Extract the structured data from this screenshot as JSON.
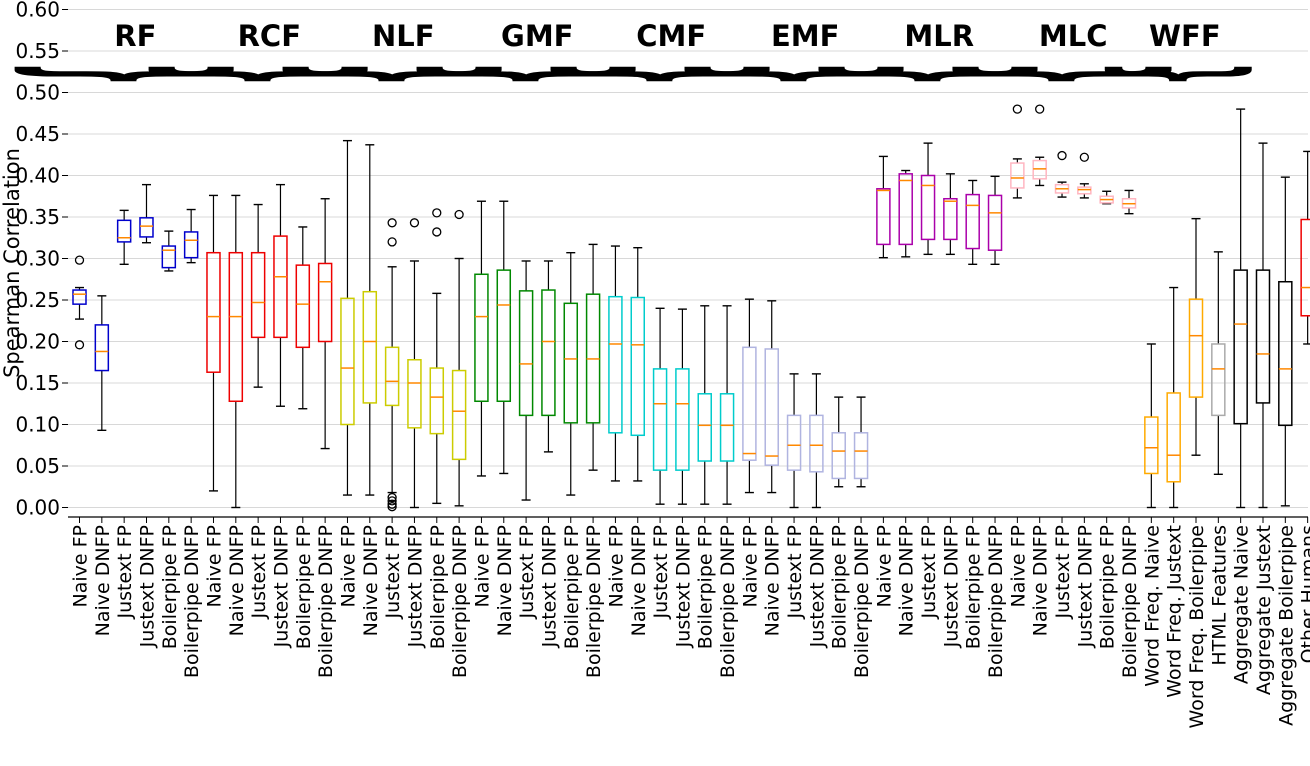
{
  "chart_data": {
    "type": "box",
    "ylabel": "Spearman Correlation",
    "xlabel": "",
    "ylim": [
      0,
      0.6
    ],
    "yticks": [
      "0.00",
      "0.05",
      "0.10",
      "0.15",
      "0.20",
      "0.25",
      "0.30",
      "0.35",
      "0.40",
      "0.45",
      "0.50",
      "0.55",
      "0.60"
    ],
    "grid": "horizontal",
    "groups": [
      {
        "label": "RF",
        "first": 0,
        "last": 5
      },
      {
        "label": "RCF",
        "first": 6,
        "last": 11
      },
      {
        "label": "NLF",
        "first": 12,
        "last": 17
      },
      {
        "label": "GMF",
        "first": 18,
        "last": 23
      },
      {
        "label": "CMF",
        "first": 24,
        "last": 29
      },
      {
        "label": "EMF",
        "first": 30,
        "last": 35
      },
      {
        "label": "MLR",
        "first": 36,
        "last": 41
      },
      {
        "label": "MLC",
        "first": 42,
        "last": 47
      },
      {
        "label": "WFF",
        "first": 48,
        "last": 51
      }
    ],
    "boxes": [
      {
        "label": "Naive FP",
        "color": "#0000cc",
        "whislo": 0.227,
        "q1": 0.245,
        "med": 0.257,
        "q3": 0.262,
        "whishi": 0.265,
        "fliers": [
          0.298,
          0.196
        ]
      },
      {
        "label": "Naive DNFP",
        "color": "#0000cc",
        "whislo": 0.093,
        "q1": 0.165,
        "med": 0.188,
        "q3": 0.22,
        "whishi": 0.255,
        "fliers": []
      },
      {
        "label": "Justext FP",
        "color": "#0000cc",
        "whislo": 0.293,
        "q1": 0.32,
        "med": 0.325,
        "q3": 0.346,
        "whishi": 0.358,
        "fliers": []
      },
      {
        "label": "Justext DNFP",
        "color": "#0000cc",
        "whislo": 0.319,
        "q1": 0.326,
        "med": 0.339,
        "q3": 0.349,
        "whishi": 0.389,
        "fliers": []
      },
      {
        "label": "Boilerpipe FP",
        "color": "#0000cc",
        "whislo": 0.285,
        "q1": 0.289,
        "med": 0.31,
        "q3": 0.315,
        "whishi": 0.333,
        "fliers": []
      },
      {
        "label": "Boilerpipe DNFP",
        "color": "#0000cc",
        "whislo": 0.295,
        "q1": 0.301,
        "med": 0.322,
        "q3": 0.332,
        "whishi": 0.359,
        "fliers": []
      },
      {
        "label": "Naive FP",
        "color": "#ee0000",
        "whislo": 0.02,
        "q1": 0.163,
        "med": 0.23,
        "q3": 0.307,
        "whishi": 0.376,
        "fliers": []
      },
      {
        "label": "Naive DNFP",
        "color": "#ee0000",
        "whislo": 0.0,
        "q1": 0.128,
        "med": 0.23,
        "q3": 0.307,
        "whishi": 0.376,
        "fliers": []
      },
      {
        "label": "Justext FP",
        "color": "#ee0000",
        "whislo": 0.145,
        "q1": 0.205,
        "med": 0.247,
        "q3": 0.307,
        "whishi": 0.365,
        "fliers": []
      },
      {
        "label": "Justext DNFP",
        "color": "#ee0000",
        "whislo": 0.122,
        "q1": 0.205,
        "med": 0.278,
        "q3": 0.327,
        "whishi": 0.389,
        "fliers": []
      },
      {
        "label": "Boilerpipe FP",
        "color": "#ee0000",
        "whislo": 0.119,
        "q1": 0.193,
        "med": 0.245,
        "q3": 0.292,
        "whishi": 0.338,
        "fliers": []
      },
      {
        "label": "Boilerpipe DNFP",
        "color": "#ee0000",
        "whislo": 0.071,
        "q1": 0.2,
        "med": 0.272,
        "q3": 0.294,
        "whishi": 0.372,
        "fliers": []
      },
      {
        "label": "Naive FP",
        "color": "#cccc00",
        "whislo": 0.015,
        "q1": 0.1,
        "med": 0.168,
        "q3": 0.252,
        "whishi": 0.442,
        "fliers": []
      },
      {
        "label": "Naive DNFP",
        "color": "#cccc00",
        "whislo": 0.015,
        "q1": 0.126,
        "med": 0.2,
        "q3": 0.26,
        "whishi": 0.437,
        "fliers": []
      },
      {
        "label": "Justext FP",
        "color": "#cccc00",
        "whislo": 0.018,
        "q1": 0.123,
        "med": 0.152,
        "q3": 0.193,
        "whishi": 0.29,
        "fliers": [
          0.343,
          0.32,
          0.012,
          0.008,
          0.004,
          0.001
        ]
      },
      {
        "label": "Justext DNFP",
        "color": "#cccc00",
        "whislo": 0.0,
        "q1": 0.096,
        "med": 0.15,
        "q3": 0.178,
        "whishi": 0.297,
        "fliers": [
          0.343
        ]
      },
      {
        "label": "Boilerpipe FP",
        "color": "#cccc00",
        "whislo": 0.005,
        "q1": 0.089,
        "med": 0.133,
        "q3": 0.168,
        "whishi": 0.258,
        "fliers": [
          0.355,
          0.332
        ]
      },
      {
        "label": "Boilerpipe DNFP",
        "color": "#cccc00",
        "whislo": 0.002,
        "q1": 0.058,
        "med": 0.116,
        "q3": 0.165,
        "whishi": 0.3,
        "fliers": [
          0.353
        ]
      },
      {
        "label": "Naive FP",
        "color": "#008800",
        "whislo": 0.038,
        "q1": 0.128,
        "med": 0.23,
        "q3": 0.281,
        "whishi": 0.369,
        "fliers": []
      },
      {
        "label": "Naive DNFP",
        "color": "#008800",
        "whislo": 0.041,
        "q1": 0.128,
        "med": 0.244,
        "q3": 0.286,
        "whishi": 0.369,
        "fliers": []
      },
      {
        "label": "Justext FP",
        "color": "#008800",
        "whislo": 0.009,
        "q1": 0.111,
        "med": 0.173,
        "q3": 0.261,
        "whishi": 0.297,
        "fliers": []
      },
      {
        "label": "Justext DNFP",
        "color": "#008800",
        "whislo": 0.067,
        "q1": 0.111,
        "med": 0.2,
        "q3": 0.262,
        "whishi": 0.297,
        "fliers": []
      },
      {
        "label": "Boilerpipe FP",
        "color": "#008800",
        "whislo": 0.015,
        "q1": 0.102,
        "med": 0.179,
        "q3": 0.246,
        "whishi": 0.307,
        "fliers": []
      },
      {
        "label": "Boilerpipe DNFP",
        "color": "#008800",
        "whislo": 0.045,
        "q1": 0.102,
        "med": 0.179,
        "q3": 0.257,
        "whishi": 0.317,
        "fliers": []
      },
      {
        "label": "Naive FP",
        "color": "#00cccc",
        "whislo": 0.032,
        "q1": 0.09,
        "med": 0.197,
        "q3": 0.254,
        "whishi": 0.315,
        "fliers": []
      },
      {
        "label": "Naive DNFP",
        "color": "#00cccc",
        "whislo": 0.032,
        "q1": 0.087,
        "med": 0.196,
        "q3": 0.253,
        "whishi": 0.313,
        "fliers": []
      },
      {
        "label": "Justext FP",
        "color": "#00cccc",
        "whislo": 0.004,
        "q1": 0.045,
        "med": 0.125,
        "q3": 0.167,
        "whishi": 0.24,
        "fliers": []
      },
      {
        "label": "Justext DNFP",
        "color": "#00cccc",
        "whislo": 0.004,
        "q1": 0.045,
        "med": 0.125,
        "q3": 0.167,
        "whishi": 0.239,
        "fliers": []
      },
      {
        "label": "Boilerpipe FP",
        "color": "#00cccc",
        "whislo": 0.004,
        "q1": 0.056,
        "med": 0.099,
        "q3": 0.137,
        "whishi": 0.243,
        "fliers": []
      },
      {
        "label": "Boilerpipe DNFP",
        "color": "#00cccc",
        "whislo": 0.004,
        "q1": 0.056,
        "med": 0.099,
        "q3": 0.137,
        "whishi": 0.243,
        "fliers": []
      },
      {
        "label": "Naive FP",
        "color": "#b0b4e0",
        "whislo": 0.018,
        "q1": 0.057,
        "med": 0.065,
        "q3": 0.193,
        "whishi": 0.251,
        "fliers": []
      },
      {
        "label": "Naive DNFP",
        "color": "#b0b4e0",
        "whislo": 0.018,
        "q1": 0.051,
        "med": 0.062,
        "q3": 0.191,
        "whishi": 0.249,
        "fliers": []
      },
      {
        "label": "Justext FP",
        "color": "#b0b4e0",
        "whislo": 0.0,
        "q1": 0.045,
        "med": 0.075,
        "q3": 0.111,
        "whishi": 0.161,
        "fliers": []
      },
      {
        "label": "Justext DNFP",
        "color": "#b0b4e0",
        "whislo": 0.0,
        "q1": 0.043,
        "med": 0.075,
        "q3": 0.111,
        "whishi": 0.161,
        "fliers": []
      },
      {
        "label": "Boilerpipe FP",
        "color": "#b0b4e0",
        "whislo": 0.025,
        "q1": 0.035,
        "med": 0.068,
        "q3": 0.09,
        "whishi": 0.133,
        "fliers": []
      },
      {
        "label": "Boilerpipe DNFP",
        "color": "#b0b4e0",
        "whislo": 0.025,
        "q1": 0.035,
        "med": 0.068,
        "q3": 0.09,
        "whishi": 0.133,
        "fliers": []
      },
      {
        "label": "Naive FP",
        "color": "#aa00aa",
        "whislo": 0.301,
        "q1": 0.317,
        "med": 0.382,
        "q3": 0.384,
        "whishi": 0.423,
        "fliers": []
      },
      {
        "label": "Naive DNFP",
        "color": "#aa00aa",
        "whislo": 0.302,
        "q1": 0.317,
        "med": 0.394,
        "q3": 0.402,
        "whishi": 0.406,
        "fliers": []
      },
      {
        "label": "Justext FP",
        "color": "#aa00aa",
        "whislo": 0.305,
        "q1": 0.323,
        "med": 0.388,
        "q3": 0.4,
        "whishi": 0.439,
        "fliers": []
      },
      {
        "label": "Justext DNFP",
        "color": "#aa00aa",
        "whislo": 0.305,
        "q1": 0.323,
        "med": 0.369,
        "q3": 0.372,
        "whishi": 0.402,
        "fliers": []
      },
      {
        "label": "Boilerpipe FP",
        "color": "#aa00aa",
        "whislo": 0.293,
        "q1": 0.312,
        "med": 0.364,
        "q3": 0.377,
        "whishi": 0.394,
        "fliers": []
      },
      {
        "label": "Boilerpipe DNFP",
        "color": "#aa00aa",
        "whislo": 0.293,
        "q1": 0.31,
        "med": 0.355,
        "q3": 0.376,
        "whishi": 0.399,
        "fliers": []
      },
      {
        "label": "Naive FP",
        "color": "#ffb6c1",
        "whislo": 0.373,
        "q1": 0.385,
        "med": 0.397,
        "q3": 0.415,
        "whishi": 0.42,
        "fliers": [
          0.48
        ]
      },
      {
        "label": "Naive DNFP",
        "color": "#ffb6c1",
        "whislo": 0.388,
        "q1": 0.396,
        "med": 0.408,
        "q3": 0.418,
        "whishi": 0.422,
        "fliers": [
          0.48
        ]
      },
      {
        "label": "Justext FP",
        "color": "#ffb6c1",
        "whislo": 0.374,
        "q1": 0.379,
        "med": 0.384,
        "q3": 0.389,
        "whishi": 0.392,
        "fliers": [
          0.424
        ]
      },
      {
        "label": "Justext DNFP",
        "color": "#ffb6c1",
        "whislo": 0.373,
        "q1": 0.378,
        "med": 0.383,
        "q3": 0.386,
        "whishi": 0.39,
        "fliers": [
          0.422
        ]
      },
      {
        "label": "Boilerpipe FP",
        "color": "#ffb6c1",
        "whislo": 0.366,
        "q1": 0.367,
        "med": 0.371,
        "q3": 0.375,
        "whishi": 0.381,
        "fliers": []
      },
      {
        "label": "Boilerpipe DNFP",
        "color": "#ffb6c1",
        "whislo": 0.354,
        "q1": 0.361,
        "med": 0.366,
        "q3": 0.372,
        "whishi": 0.382,
        "fliers": []
      },
      {
        "label": "Word Freq. Naive",
        "color": "#ffaa00",
        "whislo": 0.0,
        "q1": 0.041,
        "med": 0.072,
        "q3": 0.109,
        "whishi": 0.197,
        "fliers": []
      },
      {
        "label": "Word Freq. Justext",
        "color": "#ffaa00",
        "whislo": 0.0,
        "q1": 0.031,
        "med": 0.063,
        "q3": 0.138,
        "whishi": 0.265,
        "fliers": []
      },
      {
        "label": "Word Freq. Boilerpipe",
        "color": "#ffaa00",
        "whislo": 0.063,
        "q1": 0.133,
        "med": 0.207,
        "q3": 0.251,
        "whishi": 0.348,
        "fliers": []
      },
      {
        "label": "HTML Features",
        "color": "#aaaaaa",
        "whislo": 0.04,
        "q1": 0.111,
        "med": 0.167,
        "q3": 0.197,
        "whishi": 0.308,
        "fliers": []
      },
      {
        "label": "Aggregate Naive",
        "color": "#000000",
        "whislo": 0.0,
        "q1": 0.101,
        "med": 0.221,
        "q3": 0.286,
        "whishi": 0.48,
        "fliers": []
      },
      {
        "label": "Aggregate Justext",
        "color": "#000000",
        "whislo": 0.0,
        "q1": 0.126,
        "med": 0.185,
        "q3": 0.286,
        "whishi": 0.439,
        "fliers": []
      },
      {
        "label": "Aggregate Boilerpipe",
        "color": "#000000",
        "whislo": 0.002,
        "q1": 0.099,
        "med": 0.167,
        "q3": 0.272,
        "whishi": 0.398,
        "fliers": []
      },
      {
        "label": "Other Humans",
        "color": "#ee0000",
        "whislo": 0.197,
        "q1": 0.231,
        "med": 0.265,
        "q3": 0.347,
        "whishi": 0.429,
        "fliers": []
      }
    ]
  }
}
